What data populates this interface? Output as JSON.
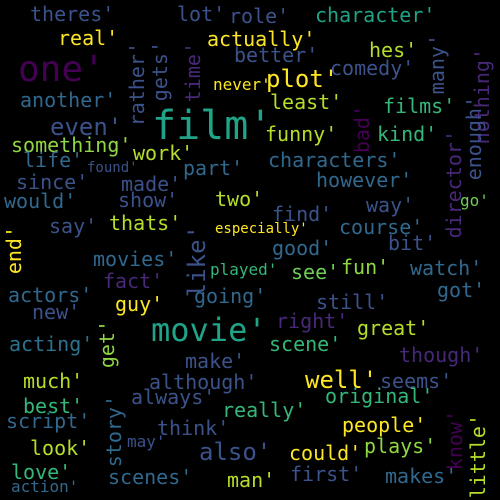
{
  "words": [
    {
      "text": "theres'",
      "color": "#3b528b"
    },
    {
      "text": "lot'",
      "color": "#3b528b"
    },
    {
      "text": "role'",
      "color": "#3b528b"
    },
    {
      "text": "character'",
      "color": "#20a386"
    },
    {
      "text": "real'",
      "color": "#fde725"
    },
    {
      "text": "rather'",
      "color": "#3b528b"
    },
    {
      "text": "gets'",
      "color": "#3b528b"
    },
    {
      "text": "time'",
      "color": "#482878"
    },
    {
      "text": "actually'",
      "color": "#fde725"
    },
    {
      "text": "hes'",
      "color": "#b5de2b"
    },
    {
      "text": "many'",
      "color": "#3b528b"
    },
    {
      "text": "one'",
      "color": "#440154"
    },
    {
      "text": "better'",
      "color": "#3b528b"
    },
    {
      "text": "comedy'",
      "color": "#3b528b"
    },
    {
      "text": "nothing'",
      "color": "#482878"
    },
    {
      "text": "never'",
      "color": "#fde725"
    },
    {
      "text": "plot'",
      "color": "#fde725"
    },
    {
      "text": "another'",
      "color": "#31688e"
    },
    {
      "text": "least'",
      "color": "#b5de2b"
    },
    {
      "text": "films'",
      "color": "#35b779"
    },
    {
      "text": "film'",
      "color": "#20a386"
    },
    {
      "text": "even'",
      "color": "#3b528b"
    },
    {
      "text": "bad'",
      "color": "#440154"
    },
    {
      "text": "enough'",
      "color": "#3b528b"
    },
    {
      "text": "kind'",
      "color": "#35b779"
    },
    {
      "text": "funny'",
      "color": "#b5de2b"
    },
    {
      "text": "something'",
      "color": "#8fd744"
    },
    {
      "text": "work'",
      "color": "#b5de2b"
    },
    {
      "text": "life'",
      "color": "#31688e"
    },
    {
      "text": "found'",
      "color": "#3b528b"
    },
    {
      "text": "part'",
      "color": "#31688e"
    },
    {
      "text": "characters'",
      "color": "#31688e"
    },
    {
      "text": "director'",
      "color": "#482878"
    },
    {
      "text": "since'",
      "color": "#3b528b"
    },
    {
      "text": "made'",
      "color": "#3b528b"
    },
    {
      "text": "however'",
      "color": "#31688e"
    },
    {
      "text": "would'",
      "color": "#31688e"
    },
    {
      "text": "show'",
      "color": "#3b528b"
    },
    {
      "text": "two'",
      "color": "#b5de2b"
    },
    {
      "text": "way'",
      "color": "#3b528b"
    },
    {
      "text": "go'",
      "color": "#6ece58"
    },
    {
      "text": "say'",
      "color": "#3b528b"
    },
    {
      "text": "thats'",
      "color": "#b5de2b"
    },
    {
      "text": "especially'",
      "color": "#fde725"
    },
    {
      "text": "find'",
      "color": "#3b528b"
    },
    {
      "text": "course'",
      "color": "#31688e"
    },
    {
      "text": "end'",
      "color": "#fde725"
    },
    {
      "text": "like'",
      "color": "#3b528b"
    },
    {
      "text": "good'",
      "color": "#31688e"
    },
    {
      "text": "bit'",
      "color": "#3b528b"
    },
    {
      "text": "movies'",
      "color": "#31688e"
    },
    {
      "text": "played'",
      "color": "#35b779"
    },
    {
      "text": "see'",
      "color": "#6ece58"
    },
    {
      "text": "fun'",
      "color": "#8fd744"
    },
    {
      "text": "watch'",
      "color": "#31688e"
    },
    {
      "text": "fact'",
      "color": "#482878"
    },
    {
      "text": "actors'",
      "color": "#31688e"
    },
    {
      "text": "going'",
      "color": "#31688e"
    },
    {
      "text": "got'",
      "color": "#31688e"
    },
    {
      "text": "guy'",
      "color": "#fde725"
    },
    {
      "text": "still'",
      "color": "#3b528b"
    },
    {
      "text": "new'",
      "color": "#3b528b"
    },
    {
      "text": "right'",
      "color": "#482878"
    },
    {
      "text": "movie'",
      "color": "#20a386"
    },
    {
      "text": "great'",
      "color": "#b5de2b"
    },
    {
      "text": "get'",
      "color": "#8fd744"
    },
    {
      "text": "acting'",
      "color": "#2c728e"
    },
    {
      "text": "scene'",
      "color": "#35b779"
    },
    {
      "text": "though'",
      "color": "#482878"
    },
    {
      "text": "make'",
      "color": "#3b528b"
    },
    {
      "text": "much'",
      "color": "#b5de2b"
    },
    {
      "text": "although'",
      "color": "#3b528b"
    },
    {
      "text": "well'",
      "color": "#fde725"
    },
    {
      "text": "seems'",
      "color": "#3b528b"
    },
    {
      "text": "best'",
      "color": "#35b779"
    },
    {
      "text": "story'",
      "color": "#31688e"
    },
    {
      "text": "always'",
      "color": "#3b528b"
    },
    {
      "text": "original'",
      "color": "#35b779"
    },
    {
      "text": "really'",
      "color": "#35b779"
    },
    {
      "text": "script'",
      "color": "#31688e"
    },
    {
      "text": "think'",
      "color": "#3b528b"
    },
    {
      "text": "people'",
      "color": "#fde725"
    },
    {
      "text": "know'",
      "color": "#440154"
    },
    {
      "text": "little'",
      "color": "#b5de2b"
    },
    {
      "text": "look'",
      "color": "#b5de2b"
    },
    {
      "text": "may'",
      "color": "#3b528b"
    },
    {
      "text": "also'",
      "color": "#3b528b"
    },
    {
      "text": "could'",
      "color": "#fde725"
    },
    {
      "text": "plays'",
      "color": "#8fd744"
    },
    {
      "text": "love'",
      "color": "#35b779"
    },
    {
      "text": "scenes'",
      "color": "#31688e"
    },
    {
      "text": "man'",
      "color": "#b5de2b"
    },
    {
      "text": "first'",
      "color": "#3b528b"
    },
    {
      "text": "makes'",
      "color": "#31688e"
    },
    {
      "text": "action'",
      "color": "#31688e"
    }
  ]
}
